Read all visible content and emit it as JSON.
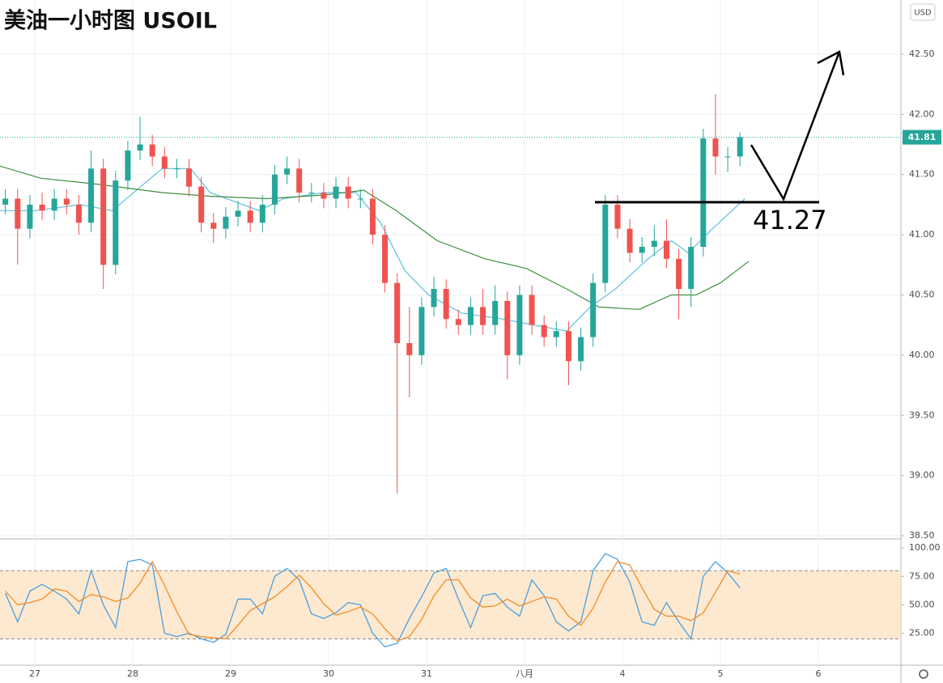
{
  "chart_data": [
    {
      "type": "candlestick",
      "title": "美油一小时图 USOIL",
      "currency": "USD",
      "x": [
        -0.3,
        -0.175,
        -0.05,
        0.075,
        0.2,
        0.325,
        0.45,
        0.575,
        0.7,
        0.825,
        0.95,
        1.075,
        1.2,
        1.325,
        1.45,
        1.575,
        1.7,
        1.825,
        1.95,
        2.075,
        2.2,
        2.325,
        2.45,
        2.575,
        2.7,
        2.825,
        2.95,
        3.075,
        3.2,
        3.325,
        3.45,
        3.575,
        3.7,
        3.825,
        3.95,
        4.075,
        4.2,
        4.325,
        4.45,
        4.575,
        4.7,
        4.825,
        4.95,
        5.075,
        5.2,
        5.325,
        5.45,
        5.575,
        5.7,
        5.825,
        5.95,
        6.075,
        6.2,
        6.325,
        6.45,
        6.575,
        6.7,
        6.825,
        6.95,
        7.075,
        7.2
      ],
      "open": [
        41.25,
        41.3,
        41.05,
        41.25,
        41.2,
        41.3,
        41.25,
        41.1,
        41.55,
        40.75,
        41.45,
        41.7,
        41.75,
        41.65,
        41.55,
        41.55,
        41.4,
        41.1,
        41.05,
        41.15,
        41.2,
        41.1,
        41.25,
        41.5,
        41.55,
        41.35,
        41.35,
        41.3,
        41.4,
        41.3,
        41.3,
        41.0,
        40.6,
        40.1,
        40.0,
        40.4,
        40.55,
        40.3,
        40.25,
        40.4,
        40.25,
        40.45,
        40.0,
        40.5,
        40.25,
        40.15,
        40.2,
        39.95,
        40.15,
        40.6,
        41.25,
        41.05,
        40.85,
        40.9,
        40.95,
        40.8,
        40.55,
        40.9,
        41.8,
        41.65,
        41.65
      ],
      "high": [
        41.38,
        41.38,
        41.33,
        41.35,
        41.38,
        41.38,
        41.33,
        41.7,
        41.63,
        41.53,
        41.78,
        41.98,
        41.83,
        41.73,
        41.63,
        41.63,
        41.48,
        41.18,
        41.23,
        41.28,
        41.28,
        41.33,
        41.58,
        41.65,
        41.63,
        41.43,
        41.43,
        41.48,
        41.48,
        41.38,
        41.38,
        41.08,
        40.68,
        40.4,
        40.48,
        40.65,
        40.63,
        40.38,
        40.48,
        40.55,
        40.58,
        40.53,
        40.58,
        40.58,
        40.33,
        40.28,
        40.28,
        40.23,
        40.68,
        41.33,
        41.33,
        41.13,
        40.98,
        41.08,
        41.13,
        40.88,
        40.98,
        41.88,
        42.17,
        41.73,
        41.85
      ],
      "low": [
        41.17,
        40.75,
        40.97,
        41.12,
        41.12,
        41.17,
        41.0,
        41.02,
        40.55,
        40.67,
        41.37,
        41.62,
        41.57,
        41.47,
        41.47,
        41.32,
        41.02,
        40.93,
        40.97,
        41.07,
        41.02,
        41.02,
        41.17,
        41.42,
        41.27,
        41.27,
        41.22,
        41.22,
        41.22,
        41.22,
        40.92,
        40.52,
        38.85,
        39.65,
        39.92,
        40.32,
        40.22,
        40.17,
        40.17,
        40.17,
        40.17,
        39.8,
        39.92,
        40.17,
        40.07,
        40.07,
        39.75,
        39.87,
        40.07,
        40.52,
        40.97,
        40.77,
        40.77,
        40.82,
        40.72,
        40.3,
        40.4,
        40.82,
        41.5,
        41.52,
        41.57
      ],
      "close": [
        41.3,
        41.05,
        41.25,
        41.2,
        41.3,
        41.25,
        41.1,
        41.55,
        40.75,
        41.45,
        41.7,
        41.75,
        41.65,
        41.55,
        41.55,
        41.4,
        41.1,
        41.05,
        41.15,
        41.2,
        41.1,
        41.25,
        41.5,
        41.55,
        41.35,
        41.35,
        41.3,
        41.4,
        41.3,
        41.3,
        41.0,
        40.6,
        40.1,
        40.0,
        40.4,
        40.55,
        40.3,
        40.25,
        40.4,
        40.25,
        40.45,
        40.0,
        40.5,
        40.25,
        40.15,
        40.2,
        39.95,
        40.15,
        40.6,
        41.25,
        41.05,
        40.85,
        40.9,
        40.95,
        40.8,
        40.55,
        40.9,
        41.8,
        41.65,
        41.65,
        41.81
      ],
      "up_color": "#26a69a",
      "down_color": "#ef5350",
      "lines": [
        {
          "color": "#5bc0de",
          "x": [
            -0.355,
            0,
            0.47,
            0.79,
            1.3,
            1.59,
            1.79,
            2.29,
            2.54,
            2.95,
            3.28,
            3.53,
            3.78,
            4.02,
            4.36,
            4.77,
            5.1,
            5.43,
            5.67,
            5.93,
            6.26,
            6.5,
            6.67,
            6.92,
            7.25
          ],
          "values": [
            41.2,
            41.2,
            41.25,
            41.2,
            41.55,
            41.55,
            41.35,
            41.2,
            41.3,
            41.35,
            41.35,
            41.1,
            40.7,
            40.5,
            40.35,
            40.3,
            40.25,
            40.2,
            40.4,
            40.55,
            40.8,
            40.95,
            40.85,
            41.05,
            41.3
          ]
        },
        {
          "color": "#3e8e41",
          "x": [
            -0.355,
            0.06,
            0.64,
            1.3,
            1.79,
            2.37,
            2.95,
            3.36,
            3.69,
            4.11,
            4.6,
            5.02,
            5.43,
            5.76,
            6.17,
            6.5,
            6.75,
            7.0,
            7.29
          ],
          "values": [
            41.57,
            41.47,
            41.42,
            41.35,
            41.32,
            41.3,
            41.33,
            41.37,
            41.2,
            40.95,
            40.8,
            40.72,
            40.55,
            40.4,
            40.38,
            40.5,
            40.5,
            40.6,
            40.78
          ]
        }
      ],
      "xlim": [
        -0.355,
        8.843
      ],
      "xticks": [
        {
          "value": 0,
          "label": "27"
        },
        {
          "value": 1,
          "label": "28"
        },
        {
          "value": 2,
          "label": "29"
        },
        {
          "value": 3,
          "label": "30"
        },
        {
          "value": 4,
          "label": "31"
        },
        {
          "value": 5,
          "label": "八月"
        },
        {
          "value": 6,
          "label": "4"
        },
        {
          "value": 7,
          "label": "5"
        },
        {
          "value": 8,
          "label": "6"
        }
      ],
      "ylim": [
        38.48,
        42.95
      ],
      "yticks": [
        {
          "value": 42.5,
          "label": "42.50"
        },
        {
          "value": 42,
          "label": "42.00"
        },
        {
          "value": 41.5,
          "label": "41.50"
        },
        {
          "value": 41,
          "label": "41.00"
        },
        {
          "value": 40.5,
          "label": "40.50"
        },
        {
          "value": 40,
          "label": "40.00"
        },
        {
          "value": 39.5,
          "label": "39.50"
        },
        {
          "value": 39,
          "label": "39.00"
        },
        {
          "value": 38.5,
          "label": "38.50"
        }
      ],
      "last_price": 41.81,
      "last_price_color": "#26a69a",
      "level": 41.27
    },
    {
      "type": "line",
      "x": [
        -0.3,
        -0.175,
        -0.05,
        0.075,
        0.2,
        0.325,
        0.45,
        0.575,
        0.7,
        0.825,
        0.95,
        1.075,
        1.2,
        1.325,
        1.45,
        1.575,
        1.7,
        1.825,
        1.95,
        2.075,
        2.2,
        2.325,
        2.45,
        2.575,
        2.7,
        2.825,
        2.95,
        3.075,
        3.2,
        3.325,
        3.45,
        3.575,
        3.7,
        3.825,
        3.95,
        4.075,
        4.2,
        4.325,
        4.45,
        4.575,
        4.7,
        4.825,
        4.95,
        5.075,
        5.2,
        5.325,
        5.45,
        5.575,
        5.7,
        5.825,
        5.95,
        6.075,
        6.2,
        6.325,
        6.45,
        6.575,
        6.7,
        6.825,
        6.95,
        7.075,
        7.2
      ],
      "series": [
        {
          "color": "#4a9fe0",
          "values": [
            60,
            35,
            62,
            68,
            62,
            55,
            42,
            80,
            50,
            30,
            88,
            90,
            85,
            25,
            22,
            25,
            20,
            17,
            24,
            55,
            55,
            42,
            75,
            82,
            72,
            42,
            38,
            43,
            52,
            50,
            25,
            13,
            16,
            38,
            57,
            78,
            82,
            55,
            30,
            58,
            60,
            48,
            40,
            72,
            58,
            35,
            27,
            35,
            80,
            95,
            90,
            70,
            35,
            32,
            52,
            35,
            20,
            75,
            88,
            78,
            65
          ]
        },
        {
          "color": "#f28c28",
          "values": [
            62,
            50,
            52,
            55,
            64,
            62,
            53,
            59,
            57,
            53,
            56,
            69,
            88,
            67,
            44,
            24,
            22,
            21,
            20,
            32,
            45,
            51,
            57,
            66,
            76,
            65,
            51,
            41,
            44,
            48,
            42,
            29,
            18,
            22,
            37,
            58,
            72,
            72,
            56,
            48,
            49,
            55,
            49,
            53,
            57,
            55,
            40,
            32,
            47,
            70,
            88,
            85,
            65,
            46,
            40,
            40,
            36,
            43,
            61,
            80,
            77
          ]
        }
      ],
      "xlim": [
        -0.355,
        8.843
      ],
      "ylim": [
        -1.7,
        106.5
      ],
      "yticks": [
        {
          "value": 100,
          "label": "100.00"
        },
        {
          "value": 75,
          "label": "75.00"
        },
        {
          "value": 50,
          "label": "50.00"
        },
        {
          "value": 25,
          "label": "25.00"
        }
      ],
      "band": [
        20,
        80
      ],
      "band_color": "#fde3c3"
    }
  ]
}
